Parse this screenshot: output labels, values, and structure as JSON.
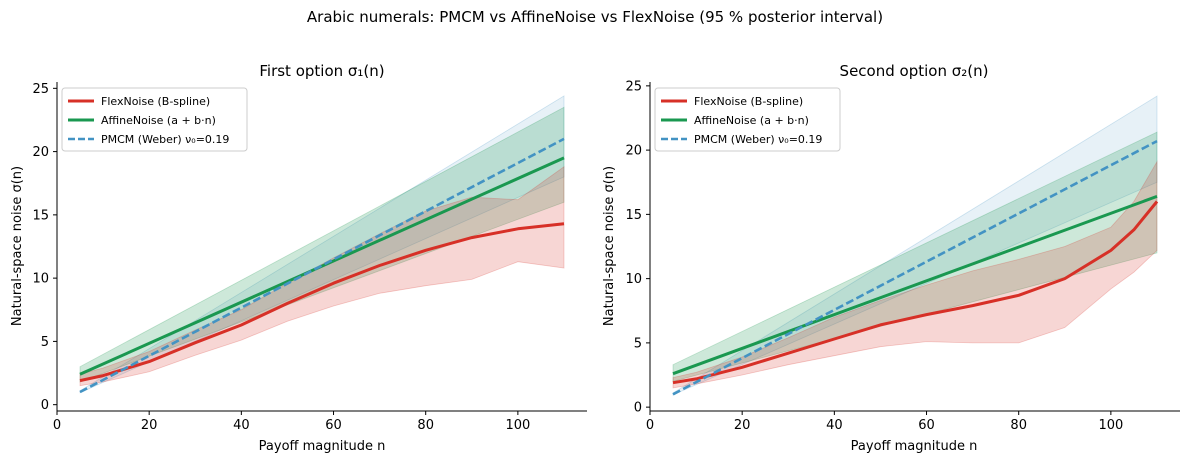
{
  "figure": {
    "suptitle": "Arabic numerals: PMCM vs AffineNoise vs FlexNoise (95 % posterior interval)"
  },
  "colors": {
    "flex": "#d73027",
    "affine": "#1a9850",
    "pmcm": "#4393c3"
  },
  "chart_data": [
    {
      "type": "line",
      "title": "First option  σ₁(n)",
      "xlabel": "Payoff magnitude  n",
      "ylabel": "Natural-space noise  σ(n)",
      "xlim": [
        0,
        115
      ],
      "ylim": [
        -0.5,
        25.5
      ],
      "xticks": [
        0,
        20,
        40,
        60,
        80,
        100
      ],
      "yticks": [
        0,
        5,
        10,
        15,
        20,
        25
      ],
      "legend_position": "upper-left",
      "series": [
        {
          "key": "flex",
          "name": "FlexNoise (B-spline)",
          "style": "solid",
          "x": [
            5,
            10,
            20,
            30,
            40,
            50,
            60,
            70,
            80,
            90,
            100,
            110
          ],
          "y": [
            1.9,
            2.3,
            3.4,
            4.9,
            6.3,
            8.0,
            9.6,
            11.0,
            12.2,
            13.2,
            13.9,
            14.3
          ],
          "lower": [
            1.5,
            1.8,
            2.6,
            3.9,
            5.1,
            6.6,
            7.8,
            8.8,
            9.4,
            9.9,
            11.3,
            10.8
          ],
          "upper": [
            2.4,
            2.9,
            4.2,
            5.9,
            7.5,
            9.6,
            11.6,
            13.5,
            15.3,
            16.4,
            16.2,
            18.8
          ]
        },
        {
          "key": "affine",
          "name": "AffineNoise (a + b·n)",
          "style": "solid",
          "x": [
            5,
            110
          ],
          "y": [
            2.4,
            19.5
          ],
          "lower": [
            1.8,
            16.0
          ],
          "upper": [
            3.0,
            23.5
          ]
        },
        {
          "key": "pmcm",
          "name": "PMCM (Weber)  ν₀=0.19",
          "style": "dashed",
          "x": [
            5,
            110
          ],
          "y": [
            1.0,
            21.0
          ],
          "lower": [
            0.95,
            18.0
          ],
          "upper": [
            1.1,
            24.4
          ]
        }
      ]
    },
    {
      "type": "line",
      "title": "Second option  σ₂(n)",
      "xlabel": "Payoff magnitude  n",
      "ylabel": "Natural-space noise  σ(n)",
      "xlim": [
        0,
        115
      ],
      "ylim": [
        -0.3,
        25.3
      ],
      "xticks": [
        0,
        20,
        40,
        60,
        80,
        100
      ],
      "yticks": [
        0,
        5,
        10,
        15,
        20,
        25
      ],
      "legend_position": "upper-left",
      "series": [
        {
          "key": "flex",
          "name": "FlexNoise (B-spline)",
          "style": "solid",
          "x": [
            5,
            10,
            20,
            30,
            40,
            50,
            60,
            70,
            80,
            90,
            100,
            105,
            110
          ],
          "y": [
            1.9,
            2.2,
            3.1,
            4.2,
            5.3,
            6.4,
            7.2,
            7.9,
            8.7,
            10.0,
            12.2,
            13.8,
            16.0
          ],
          "lower": [
            1.5,
            1.8,
            2.5,
            3.3,
            4.0,
            4.7,
            5.1,
            5.0,
            5.0,
            6.2,
            9.2,
            10.5,
            12.2
          ],
          "upper": [
            2.3,
            2.7,
            3.9,
            5.4,
            7.0,
            8.3,
            9.5,
            10.6,
            11.5,
            12.5,
            14.0,
            16.0,
            19.1
          ]
        },
        {
          "key": "affine",
          "name": "AffineNoise (a + b·n)",
          "style": "solid",
          "x": [
            5,
            110
          ],
          "y": [
            2.6,
            16.4
          ],
          "lower": [
            2.0,
            12.0
          ],
          "upper": [
            3.3,
            21.4
          ]
        },
        {
          "key": "pmcm",
          "name": "PMCM (Weber)  ν₀=0.19",
          "style": "dashed",
          "x": [
            5,
            110
          ],
          "y": [
            1.0,
            20.7
          ],
          "lower": [
            0.95,
            17.5
          ],
          "upper": [
            1.1,
            24.2
          ]
        }
      ]
    }
  ]
}
